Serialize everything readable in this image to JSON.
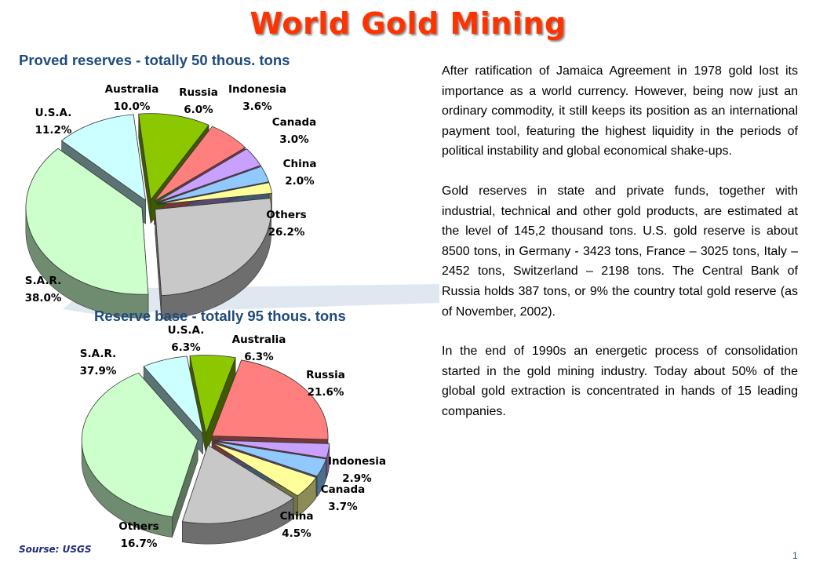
{
  "title": "World Gold Mining",
  "chart_data": [
    {
      "type": "pie",
      "title": "Proved reserves - totally 50 thous. tons",
      "slices": [
        {
          "name": "Australia",
          "value": 10.0,
          "label": "10.0%",
          "color": "#8cc800"
        },
        {
          "name": "Russia",
          "value": 6.0,
          "label": "6.0%",
          "color": "#ff7f7f"
        },
        {
          "name": "Indonesia",
          "value": 3.6,
          "label": "3.6%",
          "color": "#c8a0ff"
        },
        {
          "name": "Canada",
          "value": 3.0,
          "label": "3.0%",
          "color": "#90c8ff"
        },
        {
          "name": "China",
          "value": 2.0,
          "label": "2.0%",
          "color": "#ffff99"
        },
        {
          "name": "Others",
          "value": 26.2,
          "label": "26.2%",
          "color": "#c8c8c8"
        },
        {
          "name": "S.A.R.",
          "value": 38.0,
          "label": "38.0%",
          "color": "#ccffcc"
        },
        {
          "name": "U.S.A.",
          "value": 11.2,
          "label": "11.2%",
          "color": "#ccffff"
        }
      ]
    },
    {
      "type": "pie",
      "title": "Reserve base - totally 95 thous. tons",
      "slices": [
        {
          "name": "Australia",
          "value": 6.3,
          "label": "6.3%",
          "color": "#8cc800"
        },
        {
          "name": "Russia",
          "value": 21.6,
          "label": "21.6%",
          "color": "#ff7f7f"
        },
        {
          "name": "Indonesia",
          "value": 2.9,
          "label": "2.9%",
          "color": "#c8a0ff"
        },
        {
          "name": "Canada",
          "value": 3.7,
          "label": "3.7%",
          "color": "#90c8ff"
        },
        {
          "name": "China",
          "value": 4.5,
          "label": "4.5%",
          "color": "#ffff99"
        },
        {
          "name": "Others",
          "value": 16.7,
          "label": "16.7%",
          "color": "#c8c8c8"
        },
        {
          "name": "S.A.R.",
          "value": 37.9,
          "label": "37.9%",
          "color": "#ccffcc"
        },
        {
          "name": "U.S.A.",
          "value": 6.3,
          "label": "6.3%",
          "color": "#ccffff"
        }
      ]
    }
  ],
  "paragraphs": [
    "After ratification of Jamaica Agreement in 1978 gold lost its importance as a world currency. However, being now just an ordinary commodity, it still keeps its position as an international payment tool, featuring the highest liquidity in the periods of political instability and global economical shake-ups.",
    "Gold reserves in state and private funds, together with industrial, technical and other gold products, are estimated at the level of 145,2 thousand tons. U.S. gold reserve is about 8500 tons, in Germany - 3423 tons, France – 3025 tons, Italy – 2452 tons, Switzerland – 2198 tons. The Central Bank of Russia holds 387 tons, or 9% the country total gold reserve (as of November, 2002).",
    "In the end of 1990s an energetic process of consolidation started in the gold mining industry. Today about 50% of the global gold extraction is concentrated in hands of 15 leading companies."
  ],
  "source": "Sourse: USGS",
  "page_number": "1"
}
